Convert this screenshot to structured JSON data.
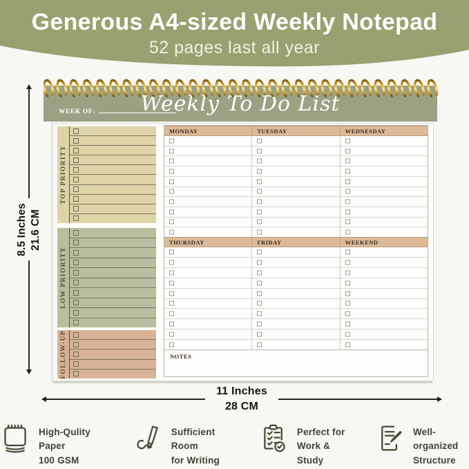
{
  "banner": {
    "title": "Generous A4-sized Weekly Notepad",
    "subtitle": "52 pages last all year"
  },
  "notepad": {
    "ring_count": 30,
    "week_of_label": "WEEK OF:",
    "title": "Weekly To Do List",
    "left_sections": [
      {
        "label": "TOP PRIORITY",
        "rows": 10,
        "bg": "#ded4a8"
      },
      {
        "label": "LOW PRIORITY",
        "rows": 10,
        "bg": "#b8bf9e"
      },
      {
        "label": "FOLLOW-UP",
        "rows": 5,
        "bg": "#d9b397"
      }
    ],
    "day_groups": [
      {
        "days": [
          "MONDAY",
          "TUESDAY",
          "WEDNESDAY"
        ],
        "rows": 10
      },
      {
        "days": [
          "THURSDAY",
          "FRIDAY",
          "WEEKEND"
        ],
        "rows": 10
      }
    ],
    "notes_label": "NOTES"
  },
  "dimensions": {
    "height": {
      "line1": "8.5 Inches",
      "line2": "21.6 CM"
    },
    "width": {
      "line1": "11 Inches",
      "line2": "28 CM"
    }
  },
  "features": [
    {
      "icon": "notepad-icon",
      "line1": "High-Qulity Paper",
      "line2": "100 GSM"
    },
    {
      "icon": "pen-icon",
      "line1": "Sufficient Room",
      "line2": "for Writing"
    },
    {
      "icon": "checklist-icon",
      "line1": "Perfect for",
      "line2": "Work & Study"
    },
    {
      "icon": "document-pen-icon",
      "line1": "Well-organized",
      "line2": "Structure"
    }
  ],
  "colors": {
    "banner_bg": "#9aa06f",
    "cover_bg": "#9ba183",
    "day_header_bg": "#dcba97",
    "gold": "#d9a62e",
    "icon_color": "#454a32"
  }
}
